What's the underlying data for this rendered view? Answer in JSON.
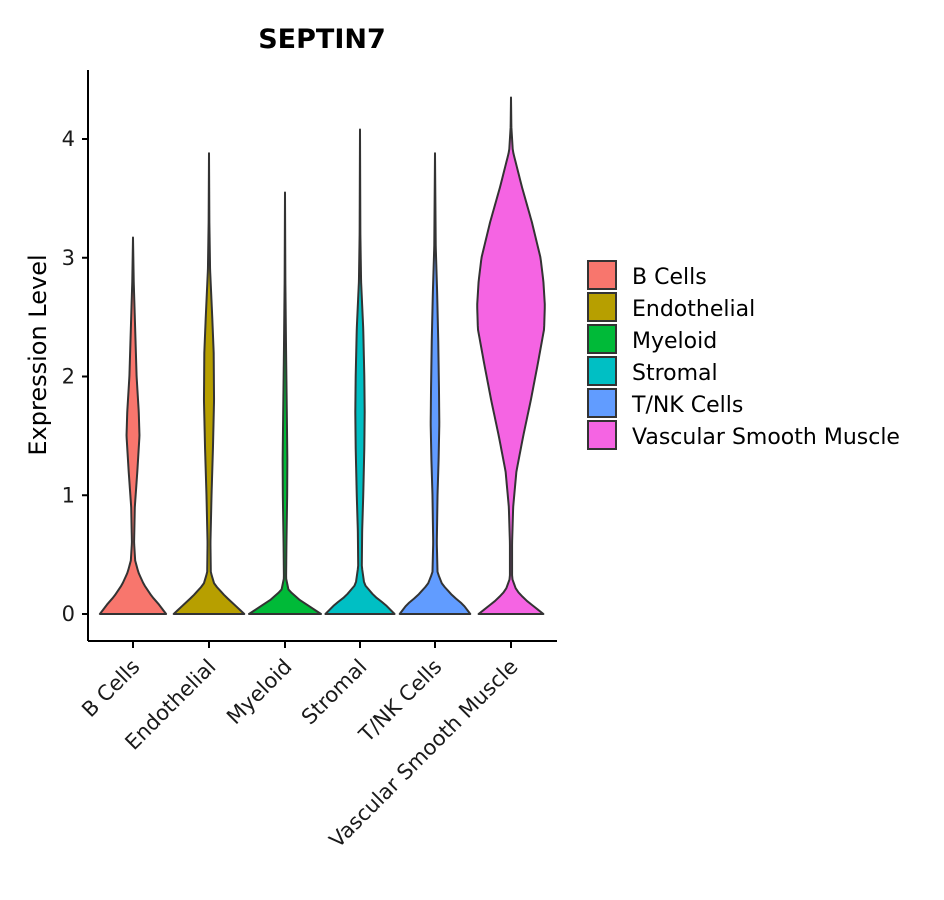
{
  "chart_data": {
    "type": "violin",
    "title": "SEPTIN7",
    "xlabel": "",
    "ylabel": "Expression Level",
    "ylim": [
      -0.22,
      4.58
    ],
    "yticks": [
      0,
      1,
      2,
      3,
      4
    ],
    "ytick_labels": [
      "0",
      "1",
      "2",
      "3",
      "4"
    ],
    "categories": [
      "B Cells",
      "Endothelial",
      "Myeloid",
      "Stromal",
      "T/NK Cells",
      "Vascular Smooth Muscle"
    ],
    "legend_title": "",
    "legend_position": "right",
    "series": [
      {
        "name": "B Cells",
        "color": "#F8766D",
        "max": 3.17,
        "profile": [
          [
            0,
            0.92
          ],
          [
            0.08,
            0.72
          ],
          [
            0.15,
            0.52
          ],
          [
            0.25,
            0.3
          ],
          [
            0.35,
            0.15
          ],
          [
            0.45,
            0.06
          ],
          [
            0.6,
            0.03
          ],
          [
            0.9,
            0.05
          ],
          [
            1.2,
            0.12
          ],
          [
            1.5,
            0.18
          ],
          [
            1.7,
            0.16
          ],
          [
            2.0,
            0.1
          ],
          [
            2.4,
            0.06
          ],
          [
            2.8,
            0.02
          ],
          [
            3.17,
            0.0
          ]
        ]
      },
      {
        "name": "Endothelial",
        "color": "#B79F00",
        "max": 3.88,
        "profile": [
          [
            0,
            0.98
          ],
          [
            0.08,
            0.7
          ],
          [
            0.15,
            0.45
          ],
          [
            0.25,
            0.15
          ],
          [
            0.35,
            0.05
          ],
          [
            0.6,
            0.04
          ],
          [
            1.0,
            0.07
          ],
          [
            1.4,
            0.11
          ],
          [
            1.8,
            0.14
          ],
          [
            2.2,
            0.13
          ],
          [
            2.5,
            0.09
          ],
          [
            2.9,
            0.03
          ],
          [
            3.3,
            0.01
          ],
          [
            3.88,
            0.0
          ]
        ]
      },
      {
        "name": "Myeloid",
        "color": "#00BA38",
        "max": 3.55,
        "profile": [
          [
            0,
            1.0
          ],
          [
            0.06,
            0.7
          ],
          [
            0.12,
            0.4
          ],
          [
            0.2,
            0.1
          ],
          [
            0.3,
            0.03
          ],
          [
            0.6,
            0.04
          ],
          [
            1.0,
            0.06
          ],
          [
            1.3,
            0.065
          ],
          [
            1.7,
            0.05
          ],
          [
            2.2,
            0.03
          ],
          [
            2.8,
            0.01
          ],
          [
            3.55,
            0.0
          ]
        ]
      },
      {
        "name": "Stromal",
        "color": "#00BFC4",
        "max": 4.08,
        "profile": [
          [
            0,
            0.96
          ],
          [
            0.08,
            0.7
          ],
          [
            0.15,
            0.4
          ],
          [
            0.25,
            0.12
          ],
          [
            0.4,
            0.05
          ],
          [
            0.7,
            0.06
          ],
          [
            1.0,
            0.09
          ],
          [
            1.4,
            0.12
          ],
          [
            1.7,
            0.13
          ],
          [
            2.0,
            0.12
          ],
          [
            2.4,
            0.09
          ],
          [
            2.8,
            0.03
          ],
          [
            3.2,
            0.01
          ],
          [
            4.08,
            0.0
          ]
        ]
      },
      {
        "name": "T/NK Cells",
        "color": "#619CFF",
        "max": 3.88,
        "profile": [
          [
            0,
            0.98
          ],
          [
            0.08,
            0.78
          ],
          [
            0.15,
            0.5
          ],
          [
            0.25,
            0.2
          ],
          [
            0.35,
            0.07
          ],
          [
            0.6,
            0.05
          ],
          [
            1.0,
            0.07
          ],
          [
            1.3,
            0.1
          ],
          [
            1.6,
            0.12
          ],
          [
            1.9,
            0.11
          ],
          [
            2.3,
            0.09
          ],
          [
            2.7,
            0.06
          ],
          [
            3.1,
            0.02
          ],
          [
            3.88,
            0.0
          ]
        ]
      },
      {
        "name": "Vascular Smooth Muscle",
        "color": "#F564E3",
        "max": 4.35,
        "profile": [
          [
            0,
            0.9
          ],
          [
            0.06,
            0.65
          ],
          [
            0.12,
            0.4
          ],
          [
            0.2,
            0.15
          ],
          [
            0.3,
            0.03
          ],
          [
            0.6,
            0.03
          ],
          [
            0.9,
            0.06
          ],
          [
            1.2,
            0.15
          ],
          [
            1.5,
            0.34
          ],
          [
            1.8,
            0.55
          ],
          [
            2.1,
            0.74
          ],
          [
            2.4,
            0.92
          ],
          [
            2.6,
            0.94
          ],
          [
            2.8,
            0.9
          ],
          [
            3.0,
            0.82
          ],
          [
            3.3,
            0.58
          ],
          [
            3.6,
            0.3
          ],
          [
            3.9,
            0.05
          ],
          [
            4.1,
            0.01
          ],
          [
            4.35,
            0.0
          ]
        ]
      }
    ]
  }
}
